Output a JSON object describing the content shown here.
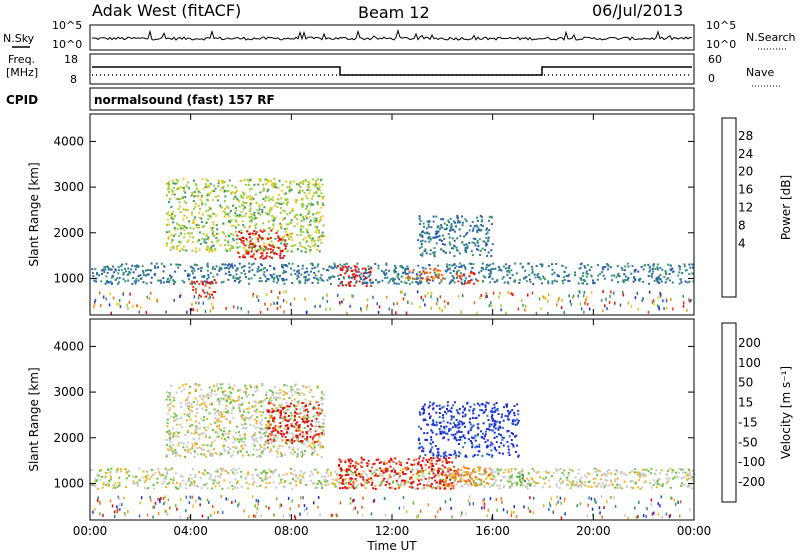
{
  "header": {
    "station": "Adak West (fitACF)",
    "beam": "Beam 12",
    "date": "06/Jul/2013"
  },
  "strip": {
    "nsky_label": "N.Sky",
    "nsky_ticks": [
      "10^5",
      "10^0"
    ],
    "nsearch_label": "N.Search",
    "nsearch_ticks": [
      "10^5",
      "10^0"
    ],
    "freq_label": "Freq.",
    "freq_unit": "[MHz]",
    "freq_ticks": [
      "18",
      "8"
    ],
    "nave_label": "Nave",
    "nave_ticks": [
      "60",
      "0"
    ],
    "cpid_label": "CPID",
    "cpid_text": "normalsound (fast) 157 RF"
  },
  "chart_data": [
    {
      "type": "heatmap",
      "name": "power",
      "ylabel": "Slant Range [km]",
      "yticks": [
        1000,
        2000,
        3000,
        4000
      ],
      "ylim": [
        200,
        4600
      ],
      "xlim_hours": [
        0,
        24
      ],
      "colorbar": {
        "label": "Power [dB]",
        "ticks": [
          "28",
          "24",
          "20",
          "16",
          "12",
          "8",
          "4"
        ],
        "colors": [
          "#1a2bd6",
          "#2a58b8",
          "#2f7d8f",
          "#3a9a6a",
          "#9bcf3a",
          "#f2c81e",
          "#f39a1c",
          "#f06a14",
          "#e83a10",
          "#e00c0c"
        ]
      },
      "echo_regions": [
        {
          "t0": 3.0,
          "t1": 9.3,
          "r_top": 3200,
          "r_bot": 1600,
          "level": 4
        },
        {
          "t0": 5.8,
          "t1": 7.8,
          "r_top": 2100,
          "r_bot": 1450,
          "level": 9
        },
        {
          "t0": 0.0,
          "t1": 24.0,
          "r_top": 1350,
          "r_bot": 900,
          "level": 2
        },
        {
          "t0": 4.0,
          "t1": 5.0,
          "r_top": 1000,
          "r_bot": 600,
          "level": 8
        },
        {
          "t0": 9.8,
          "t1": 11.2,
          "r_top": 1300,
          "r_bot": 850,
          "level": 9
        },
        {
          "t0": 12.5,
          "t1": 14.0,
          "r_top": 1250,
          "r_bot": 950,
          "level": 7
        },
        {
          "t0": 14.5,
          "t1": 15.5,
          "r_top": 1150,
          "r_bot": 900,
          "level": 8
        },
        {
          "t0": 13.0,
          "t1": 16.0,
          "r_top": 2400,
          "r_bot": 1500,
          "level": 2
        }
      ]
    },
    {
      "type": "heatmap",
      "name": "velocity",
      "ylabel": "Slant Range [km]",
      "yticks": [
        1000,
        2000,
        3000,
        4000
      ],
      "ylim": [
        200,
        4600
      ],
      "xlim_hours": [
        0,
        24
      ],
      "xticks": [
        "00:00",
        "04:00",
        "08:00",
        "12:00",
        "16:00",
        "20:00",
        "00:00"
      ],
      "xlabel": "Time UT",
      "colorbar": {
        "label": "Velocity [m s^-1]",
        "ticks": [
          "200",
          "100",
          "50",
          "15",
          "-15",
          "-50",
          "-100",
          "-200"
        ],
        "colors": [
          "#1a2bd6",
          "#2a6fc0",
          "#2f8a6a",
          "#6cc23a",
          "#c8c8c8",
          "#f2b41e",
          "#f38a1c",
          "#f05a14",
          "#e00c0c"
        ]
      },
      "echo_regions": [
        {
          "t0": 3.0,
          "t1": 9.3,
          "r_top": 3200,
          "r_bot": 1600,
          "level": 4
        },
        {
          "t0": 0.0,
          "t1": 24.0,
          "r_top": 1350,
          "r_bot": 900,
          "level": 4
        },
        {
          "t0": 7.0,
          "t1": 9.2,
          "r_top": 2800,
          "r_bot": 1900,
          "level": 8
        },
        {
          "t0": 9.8,
          "t1": 14.5,
          "r_top": 1600,
          "r_bot": 900,
          "level": 8
        },
        {
          "t0": 14.0,
          "t1": 16.0,
          "r_top": 1400,
          "r_bot": 950,
          "level": 6
        },
        {
          "t0": 13.0,
          "t1": 17.0,
          "r_top": 2800,
          "r_bot": 1600,
          "level": 0
        },
        {
          "t0": 16.5,
          "t1": 17.5,
          "r_top": 1250,
          "r_bot": 950,
          "level": 3
        }
      ]
    }
  ]
}
